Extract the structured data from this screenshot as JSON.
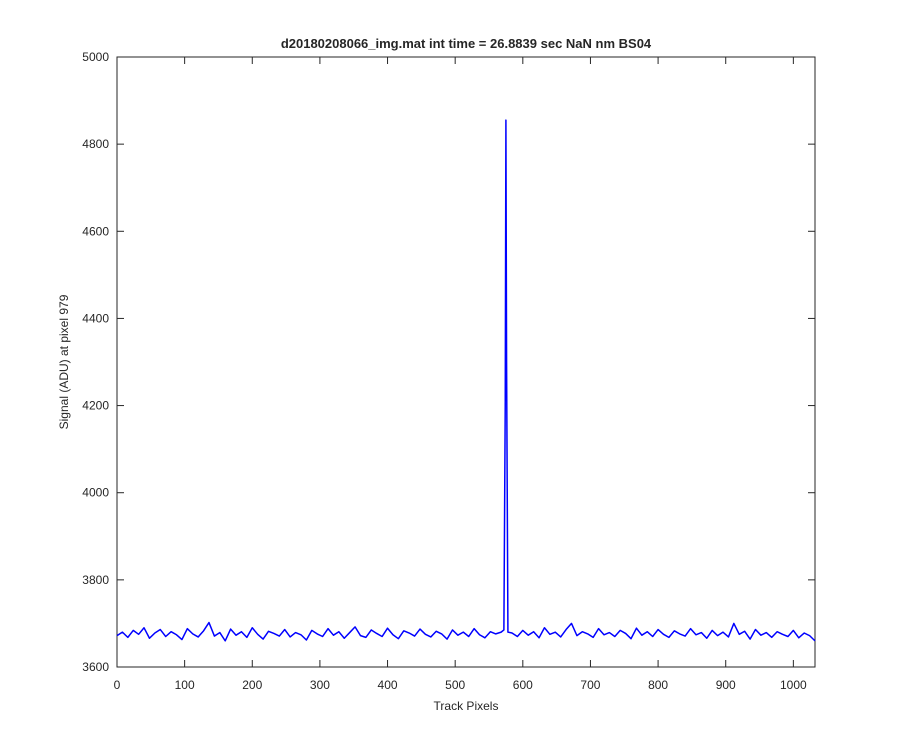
{
  "chart_data": {
    "type": "line",
    "title": "d20180208066_img.mat int time = 26.8839 sec  NaN nm BS04",
    "xlabel": "Track Pixels",
    "ylabel": "Signal (ADU) at pixel 979",
    "xlim": [
      0,
      1032
    ],
    "ylim": [
      3600,
      5000
    ],
    "xticks": [
      0,
      100,
      200,
      300,
      400,
      500,
      600,
      700,
      800,
      900,
      1000
    ],
    "yticks": [
      3600,
      3800,
      4000,
      4200,
      4400,
      4600,
      4800,
      5000
    ],
    "grid": false,
    "x": [
      0,
      8,
      16,
      24,
      32,
      40,
      48,
      56,
      64,
      72,
      80,
      88,
      96,
      104,
      112,
      120,
      128,
      136,
      144,
      152,
      160,
      168,
      176,
      184,
      192,
      200,
      208,
      216,
      224,
      232,
      240,
      248,
      256,
      264,
      272,
      280,
      288,
      296,
      304,
      312,
      320,
      328,
      336,
      344,
      352,
      360,
      368,
      376,
      384,
      392,
      400,
      408,
      416,
      424,
      432,
      440,
      448,
      456,
      464,
      472,
      480,
      488,
      496,
      504,
      512,
      520,
      528,
      536,
      544,
      552,
      560,
      568,
      572,
      574,
      575,
      576,
      578,
      584,
      592,
      600,
      608,
      616,
      624,
      632,
      640,
      648,
      656,
      664,
      672,
      680,
      688,
      696,
      704,
      712,
      720,
      728,
      736,
      744,
      752,
      760,
      768,
      776,
      784,
      792,
      800,
      808,
      816,
      824,
      832,
      840,
      848,
      856,
      864,
      872,
      880,
      888,
      896,
      904,
      912,
      920,
      928,
      936,
      944,
      952,
      960,
      968,
      976,
      984,
      992,
      1000,
      1008,
      1016,
      1024,
      1032
    ],
    "series": [
      {
        "color": "#0000ff",
        "values": [
          3672,
          3680,
          3668,
          3684,
          3675,
          3690,
          3666,
          3678,
          3686,
          3670,
          3681,
          3674,
          3663,
          3688,
          3676,
          3669,
          3683,
          3702,
          3671,
          3679,
          3660,
          3687,
          3673,
          3681,
          3668,
          3690,
          3675,
          3664,
          3682,
          3677,
          3671,
          3686,
          3669,
          3679,
          3674,
          3662,
          3684,
          3676,
          3670,
          3688,
          3673,
          3681,
          3666,
          3679,
          3692,
          3672,
          3668,
          3685,
          3677,
          3670,
          3689,
          3674,
          3665,
          3683,
          3678,
          3671,
          3687,
          3675,
          3669,
          3682,
          3676,
          3664,
          3685,
          3673,
          3680,
          3670,
          3688,
          3674,
          3667,
          3681,
          3676,
          3680,
          3685,
          4200,
          4855,
          4300,
          3680,
          3678,
          3670,
          3684,
          3673,
          3681,
          3667,
          3690,
          3675,
          3680,
          3669,
          3686,
          3700,
          3672,
          3681,
          3676,
          3668,
          3688,
          3674,
          3679,
          3670,
          3684,
          3677,
          3665,
          3689,
          3673,
          3681,
          3670,
          3686,
          3675,
          3668,
          3683,
          3676,
          3671,
          3688,
          3674,
          3679,
          3666,
          3684,
          3672,
          3680,
          3669,
          3700,
          3675,
          3682,
          3664,
          3686,
          3673,
          3679,
          3668,
          3681,
          3675,
          3670,
          3684,
          3667,
          3678,
          3672,
          3660
        ]
      }
    ]
  }
}
